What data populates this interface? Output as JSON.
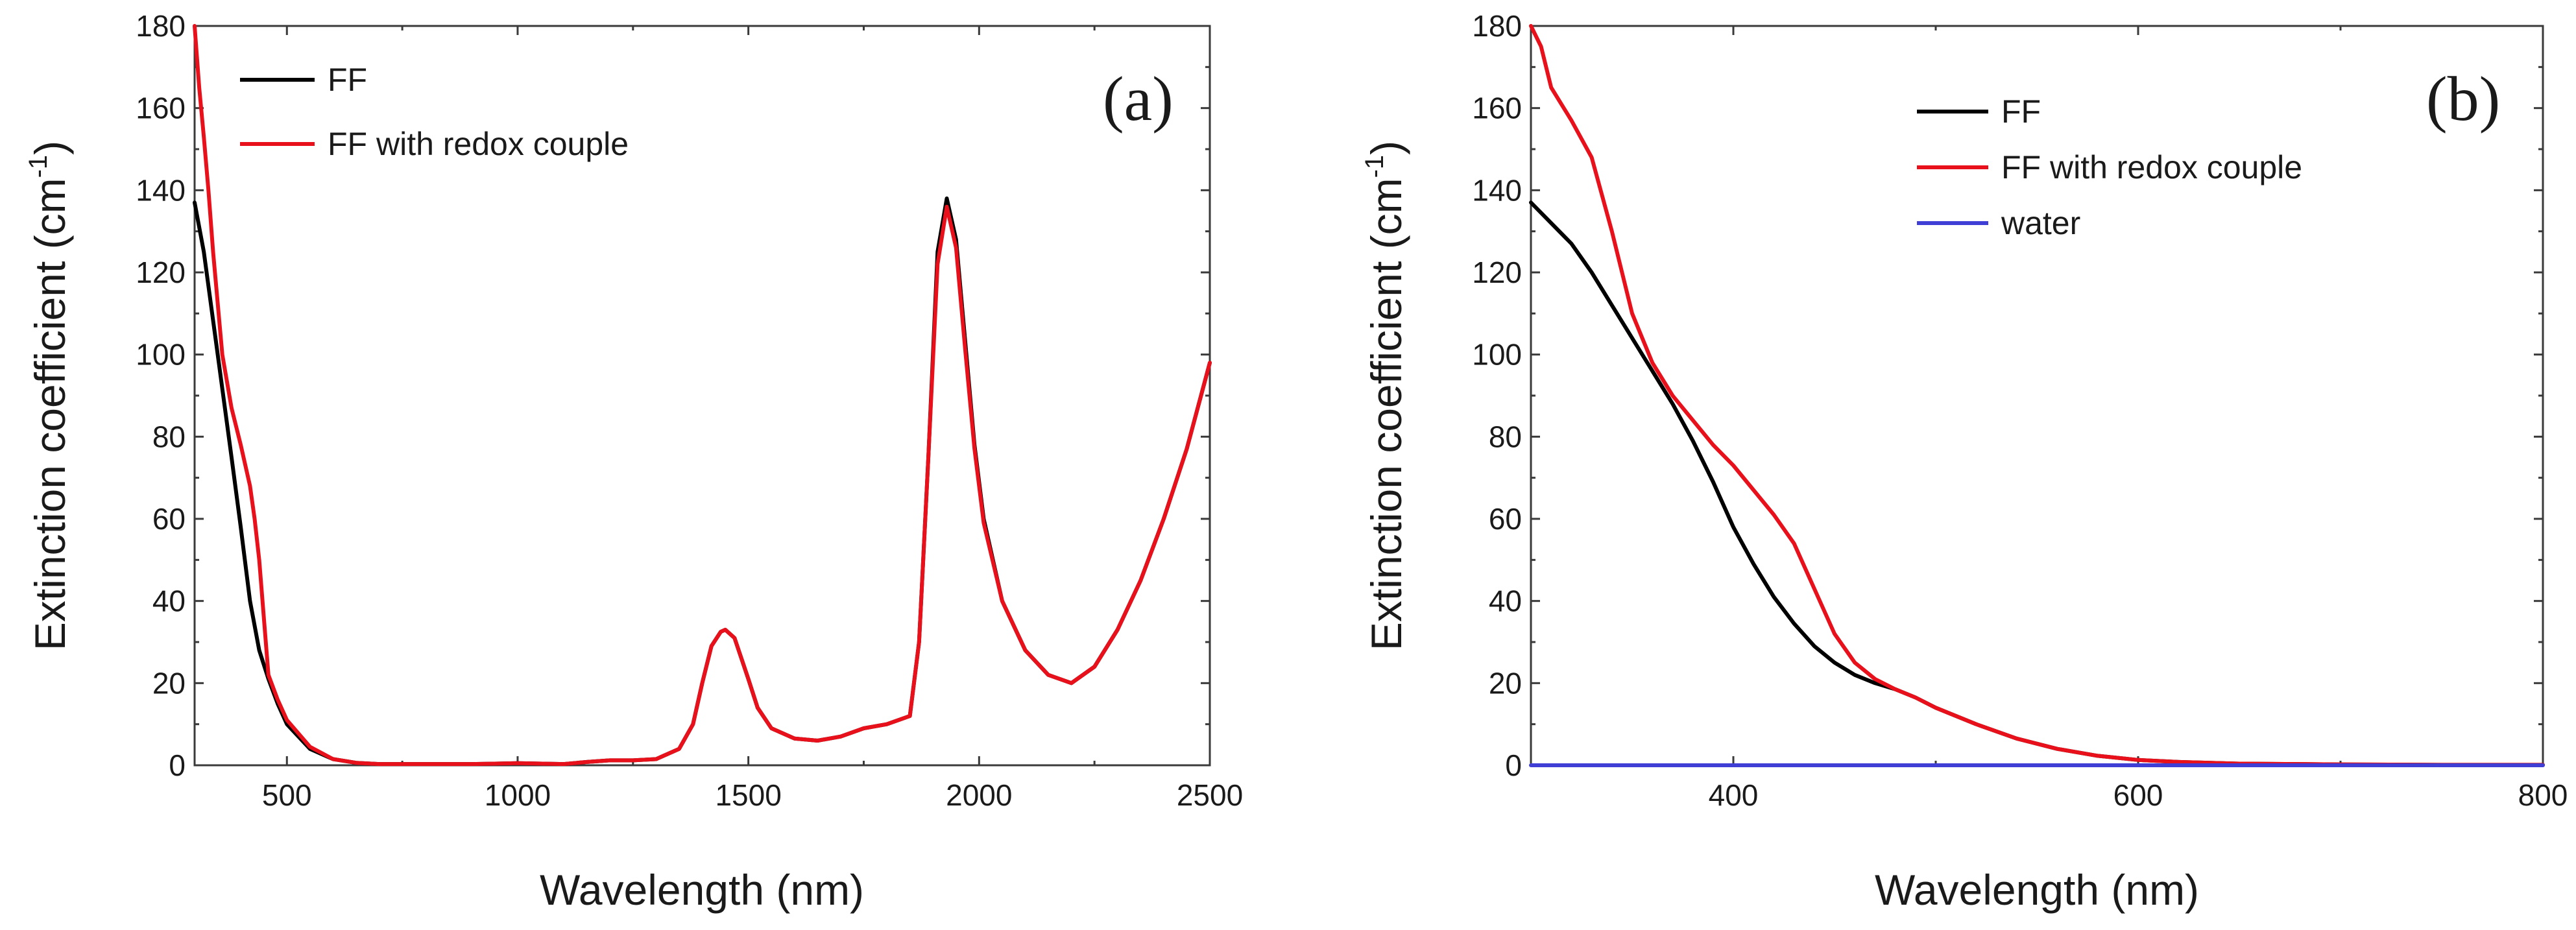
{
  "chart_data": [
    {
      "type": "line",
      "panel_label": "(a)",
      "xlabel": "Wavelength (nm)",
      "ylabel": "Extinction coefficient (cm-1)",
      "ylabel_main": "Extinction coefficient (cm",
      "ylabel_sup": "-1",
      "ylabel_close": ")",
      "xlim": [
        300,
        2500
      ],
      "ylim": [
        0,
        180
      ],
      "xticks": [
        500,
        1000,
        1500,
        2000,
        2500
      ],
      "yticks": [
        0,
        20,
        40,
        60,
        80,
        100,
        120,
        140,
        160,
        180
      ],
      "legend_position": "top-left",
      "series": [
        {
          "name": "FF",
          "color": "#000000",
          "x": [
            300,
            320,
            350,
            380,
            400,
            420,
            440,
            460,
            480,
            500,
            550,
            600,
            650,
            700,
            800,
            900,
            1000,
            1100,
            1150,
            1200,
            1250,
            1300,
            1350,
            1380,
            1400,
            1420,
            1440,
            1450,
            1470,
            1500,
            1520,
            1550,
            1600,
            1650,
            1700,
            1750,
            1800,
            1850,
            1870,
            1890,
            1910,
            1930,
            1950,
            1970,
            1990,
            2010,
            2050,
            2100,
            2150,
            2200,
            2250,
            2300,
            2350,
            2400,
            2450,
            2500
          ],
          "y": [
            137,
            125,
            100,
            75,
            58,
            40,
            28,
            21,
            15,
            10,
            4,
            1.5,
            0.6,
            0.3,
            0.3,
            0.3,
            0.5,
            0.3,
            0.8,
            1.2,
            1.2,
            1.5,
            4,
            10,
            20,
            29,
            32.5,
            33,
            31,
            21,
            14,
            9,
            6.5,
            6,
            7,
            9,
            10,
            12,
            30,
            75,
            125,
            138,
            128,
            103,
            78,
            60,
            40,
            28,
            22,
            20,
            24,
            33,
            45,
            60,
            77,
            98
          ]
        },
        {
          "name": "FF with redox couple",
          "color": "#e8111b",
          "x": [
            300,
            310,
            320,
            330,
            340,
            360,
            380,
            400,
            420,
            430,
            440,
            460,
            480,
            500,
            550,
            600,
            650,
            700,
            800,
            900,
            1000,
            1100,
            1150,
            1200,
            1250,
            1300,
            1350,
            1380,
            1400,
            1420,
            1440,
            1450,
            1470,
            1500,
            1520,
            1550,
            1600,
            1650,
            1700,
            1750,
            1800,
            1850,
            1870,
            1890,
            1910,
            1930,
            1950,
            1970,
            1990,
            2010,
            2050,
            2100,
            2150,
            2200,
            2250,
            2300,
            2350,
            2400,
            2450,
            2500
          ],
          "y": [
            180,
            165,
            153,
            140,
            125,
            100,
            87,
            78,
            68,
            60,
            50,
            22,
            16,
            11,
            4.5,
            1.5,
            0.6,
            0.3,
            0.3,
            0.3,
            0.5,
            0.3,
            0.8,
            1.2,
            1.2,
            1.5,
            4,
            10,
            20,
            29,
            32.5,
            33,
            31,
            21,
            14,
            9,
            6.5,
            6,
            7,
            9,
            10,
            12,
            30,
            75,
            122,
            136,
            126,
            101,
            77,
            59,
            40,
            28,
            22,
            20,
            24,
            33,
            45,
            60,
            77,
            98
          ]
        }
      ]
    },
    {
      "type": "line",
      "panel_label": "(b)",
      "xlabel": "Wavelength (nm)",
      "ylabel": "Extinction coefficient (cm-1)",
      "ylabel_main": "Extinction coefficient (cm",
      "ylabel_sup": "-1",
      "ylabel_close": ")",
      "xlim": [
        300,
        800
      ],
      "ylim": [
        0,
        180
      ],
      "xticks": [
        400,
        600,
        800
      ],
      "yticks": [
        0,
        20,
        40,
        60,
        80,
        100,
        120,
        140,
        160,
        180
      ],
      "legend_position": "top-right",
      "series": [
        {
          "name": "FF",
          "color": "#000000",
          "x": [
            300,
            310,
            320,
            330,
            340,
            350,
            360,
            370,
            380,
            390,
            400,
            410,
            420,
            430,
            440,
            450,
            460,
            470,
            480,
            490,
            500,
            520,
            540,
            560,
            580,
            600,
            620,
            650,
            700,
            750,
            800
          ],
          "y": [
            137,
            132,
            127,
            120,
            112,
            104,
            96,
            88,
            79,
            69,
            58,
            49,
            41,
            34.5,
            29,
            25,
            22,
            20,
            18.5,
            16.5,
            14,
            10,
            6.5,
            4,
            2.3,
            1.3,
            0.8,
            0.4,
            0.2,
            0.1,
            0.1
          ]
        },
        {
          "name": "FF with redox couple",
          "color": "#e8111b",
          "x": [
            300,
            305,
            310,
            320,
            330,
            340,
            350,
            360,
            370,
            380,
            390,
            400,
            410,
            420,
            430,
            440,
            450,
            460,
            470,
            480,
            490,
            500,
            520,
            540,
            560,
            580,
            600,
            620,
            650,
            700,
            750,
            800
          ],
          "y": [
            180,
            175,
            165,
            157,
            148,
            130,
            110,
            98,
            90,
            84,
            78,
            73,
            67,
            61,
            54,
            43,
            32,
            25,
            21,
            18.5,
            16.5,
            14,
            10,
            6.5,
            4,
            2.3,
            1.3,
            0.8,
            0.4,
            0.2,
            0.1,
            0.1
          ]
        },
        {
          "name": "water",
          "color": "#3f3fd6",
          "x": [
            300,
            800
          ],
          "y": [
            0,
            0
          ]
        }
      ]
    }
  ]
}
